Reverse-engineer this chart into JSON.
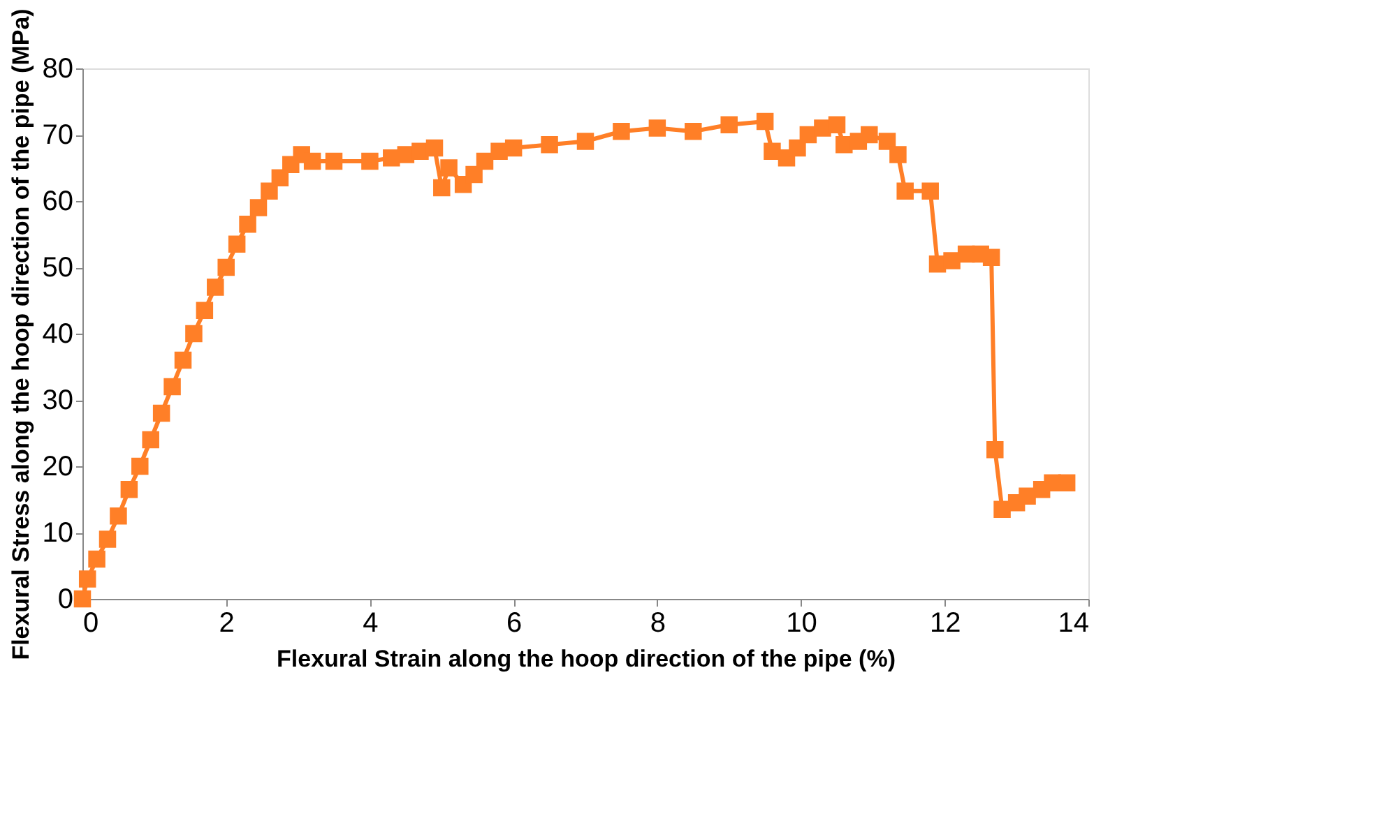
{
  "chart_data": {
    "type": "line",
    "xlabel": "Flexural Strain along the hoop direction of the pipe (%)",
    "ylabel": "Flexural Stress along the hoop direction of the pipe (MPa)",
    "xlim": [
      0,
      14
    ],
    "xticks": [
      0,
      2,
      4,
      6,
      8,
      10,
      12,
      14
    ],
    "ylim": [
      0,
      80
    ],
    "yticks": [
      0,
      10,
      20,
      30,
      40,
      50,
      60,
      70,
      80
    ],
    "grid": false,
    "marker": "square",
    "line_style": "solid",
    "series": [
      {
        "color": "#ff7f27",
        "x": [
          0,
          0.07,
          0.2,
          0.35,
          0.5,
          0.65,
          0.8,
          0.95,
          1.1,
          1.25,
          1.4,
          1.55,
          1.7,
          1.85,
          2.0,
          2.15,
          2.3,
          2.45,
          2.6,
          2.75,
          2.9,
          3.05,
          3.2,
          3.5,
          4.0,
          4.3,
          4.5,
          4.7,
          4.9,
          5.0,
          5.1,
          5.3,
          5.45,
          5.6,
          5.8,
          6.0,
          6.5,
          7.0,
          7.5,
          8.0,
          8.5,
          9.0,
          9.5,
          9.6,
          9.8,
          9.95,
          10.1,
          10.3,
          10.5,
          10.6,
          10.8,
          10.95,
          11.2,
          11.35,
          11.45,
          11.8,
          11.9,
          12.1,
          12.3,
          12.5,
          12.65,
          12.7,
          12.8,
          13.0,
          13.15,
          13.35,
          13.5,
          13.7
        ],
        "values": [
          0,
          3,
          6,
          9,
          12.5,
          16.5,
          20,
          24,
          28,
          32,
          36,
          40,
          43.5,
          47,
          50,
          53.5,
          56.5,
          59,
          61.5,
          63.5,
          65.5,
          67,
          66,
          66,
          66,
          66.5,
          67,
          67.5,
          68,
          62,
          65,
          62.5,
          64,
          66,
          67.5,
          68,
          68.5,
          69,
          70.5,
          71,
          70.5,
          71.5,
          72,
          67.5,
          66.5,
          68,
          70,
          71,
          71.5,
          68.5,
          69,
          70,
          69,
          67,
          61.5,
          61.5,
          50.5,
          51,
          52,
          52,
          51.5,
          22.5,
          13.5,
          14.5,
          15.5,
          16.5,
          17.5,
          17.5
        ]
      }
    ]
  }
}
